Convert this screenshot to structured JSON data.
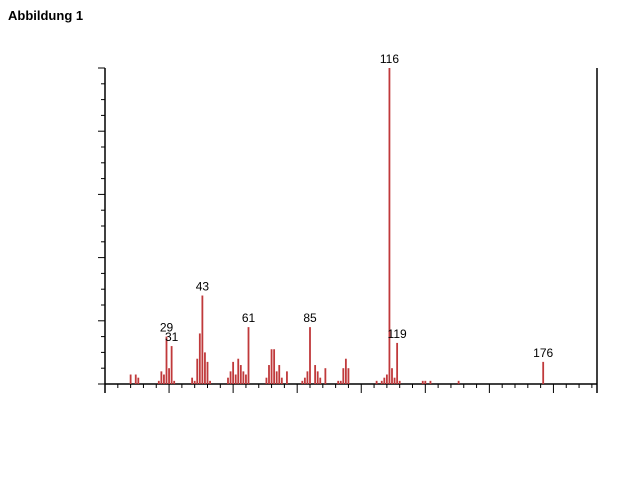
{
  "figure_title": "Abbildung 1",
  "chart_data": {
    "type": "bar",
    "title": "",
    "xlabel": "",
    "ylabel": "",
    "xlim": [
      5,
      197
    ],
    "ylim": [
      0,
      100
    ],
    "grid": false,
    "color": "#c0393b",
    "bars": [
      {
        "x": 15,
        "y": 3
      },
      {
        "x": 17,
        "y": 3
      },
      {
        "x": 18,
        "y": 2
      },
      {
        "x": 26,
        "y": 1
      },
      {
        "x": 27,
        "y": 4
      },
      {
        "x": 28,
        "y": 3
      },
      {
        "x": 29,
        "y": 15
      },
      {
        "x": 30,
        "y": 5
      },
      {
        "x": 31,
        "y": 12
      },
      {
        "x": 32,
        "y": 1
      },
      {
        "x": 39,
        "y": 2
      },
      {
        "x": 40,
        "y": 1
      },
      {
        "x": 41,
        "y": 8
      },
      {
        "x": 42,
        "y": 16
      },
      {
        "x": 43,
        "y": 28
      },
      {
        "x": 44,
        "y": 10
      },
      {
        "x": 45,
        "y": 7
      },
      {
        "x": 46,
        "y": 1
      },
      {
        "x": 53,
        "y": 2
      },
      {
        "x": 54,
        "y": 4
      },
      {
        "x": 55,
        "y": 7
      },
      {
        "x": 56,
        "y": 3
      },
      {
        "x": 57,
        "y": 8
      },
      {
        "x": 58,
        "y": 6
      },
      {
        "x": 59,
        "y": 4
      },
      {
        "x": 60,
        "y": 3
      },
      {
        "x": 61,
        "y": 18
      },
      {
        "x": 68,
        "y": 2
      },
      {
        "x": 69,
        "y": 6
      },
      {
        "x": 70,
        "y": 11
      },
      {
        "x": 71,
        "y": 11
      },
      {
        "x": 72,
        "y": 4
      },
      {
        "x": 73,
        "y": 6
      },
      {
        "x": 74,
        "y": 2
      },
      {
        "x": 76,
        "y": 4
      },
      {
        "x": 82,
        "y": 1
      },
      {
        "x": 83,
        "y": 2
      },
      {
        "x": 84,
        "y": 4
      },
      {
        "x": 85,
        "y": 18
      },
      {
        "x": 87,
        "y": 6
      },
      {
        "x": 88,
        "y": 4
      },
      {
        "x": 89,
        "y": 2
      },
      {
        "x": 91,
        "y": 5
      },
      {
        "x": 96,
        "y": 1
      },
      {
        "x": 97,
        "y": 1
      },
      {
        "x": 98,
        "y": 5
      },
      {
        "x": 99,
        "y": 8
      },
      {
        "x": 100,
        "y": 5
      },
      {
        "x": 111,
        "y": 1
      },
      {
        "x": 113,
        "y": 1
      },
      {
        "x": 114,
        "y": 2
      },
      {
        "x": 115,
        "y": 3
      },
      {
        "x": 116,
        "y": 100
      },
      {
        "x": 117,
        "y": 5
      },
      {
        "x": 118,
        "y": 2
      },
      {
        "x": 119,
        "y": 13
      },
      {
        "x": 120,
        "y": 1
      },
      {
        "x": 129,
        "y": 1
      },
      {
        "x": 130,
        "y": 1
      },
      {
        "x": 132,
        "y": 1
      },
      {
        "x": 143,
        "y": 1
      },
      {
        "x": 176,
        "y": 7
      }
    ],
    "annotations": [
      {
        "x": 29,
        "label": "29"
      },
      {
        "x": 31,
        "label": "31"
      },
      {
        "x": 43,
        "label": "43"
      },
      {
        "x": 61,
        "label": "61"
      },
      {
        "x": 85,
        "label": "85"
      },
      {
        "x": 116,
        "label": "116"
      },
      {
        "x": 119,
        "label": "119"
      },
      {
        "x": 176,
        "label": "176"
      }
    ]
  }
}
